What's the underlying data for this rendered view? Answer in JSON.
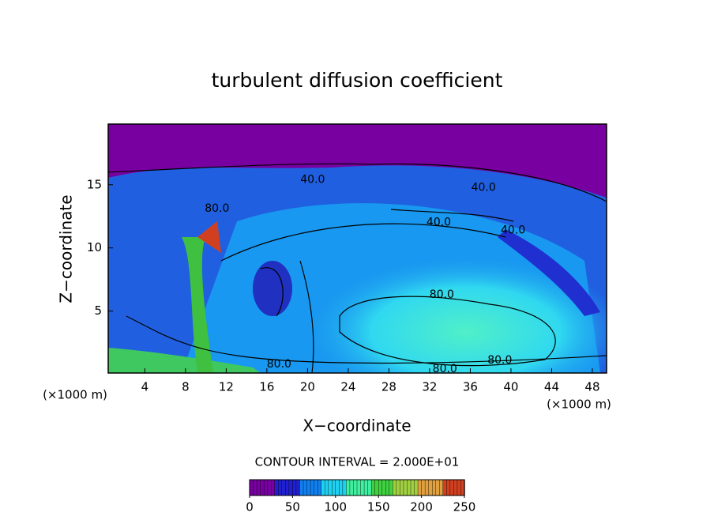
{
  "chart_data": {
    "type": "contour",
    "title": "turbulent diffusion coefficient",
    "x_label": "X−coordinate",
    "y_label": "Z−coordinate",
    "x_unit_left": "(×1000 m)",
    "x_unit_right": "(×1000 m)",
    "xlim": [
      0.4,
      49.4
    ],
    "ylim": [
      0.1,
      19.8
    ],
    "xticks": [
      4,
      8,
      12,
      16,
      20,
      24,
      28,
      32,
      36,
      40,
      44,
      48
    ],
    "yticks": [
      5,
      10,
      15
    ],
    "contour_interval_text": "CONTOUR INTERVAL = 2.000E+01",
    "contour_labels": [
      {
        "x": 20.5,
        "z": 15.4,
        "value": 40,
        "label": "40.0"
      },
      {
        "x": 37.3,
        "z": 14.75,
        "value": 40,
        "label": "40.0"
      },
      {
        "x": 11.1,
        "z": 13.1,
        "value": 80,
        "label": "80.0"
      },
      {
        "x": 32.9,
        "z": 12.0,
        "value": 40,
        "label": "40.0"
      },
      {
        "x": 40.2,
        "z": 11.4,
        "value": 40,
        "label": "40.0"
      },
      {
        "x": 33.2,
        "z": 6.3,
        "value": 80,
        "label": "80.0"
      },
      {
        "x": 38.9,
        "z": 1.1,
        "value": 80,
        "label": "80.0"
      },
      {
        "x": 17.2,
        "z": 0.8,
        "value": 80,
        "label": "80.0"
      },
      {
        "x": 33.5,
        "z": 0.4,
        "value": 80,
        "label": "80.0"
      }
    ],
    "colorbar": {
      "lim": [
        0,
        250
      ],
      "ticks": [
        0,
        50,
        100,
        150,
        200,
        250
      ],
      "colors": [
        "#7800a0",
        "#2020d0",
        "#1080f0",
        "#20d0f0",
        "#40f0a0",
        "#40d040",
        "#a0d040",
        "#e0a040",
        "#d04020",
        "#e0e0e0"
      ]
    }
  }
}
